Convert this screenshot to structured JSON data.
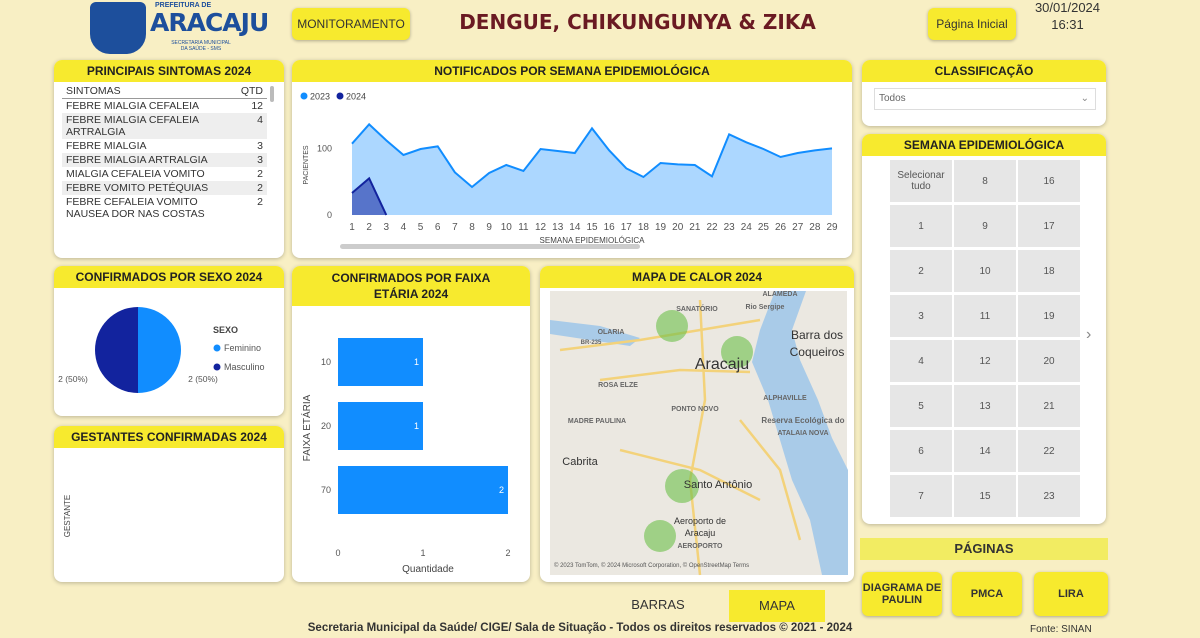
{
  "header": {
    "logo_top": "PREFEITURA DE",
    "logo_name": "ARACAJU",
    "logo_sub": "SECRETARIA MUNICIPAL DA SAÚDE - SMS",
    "monitor_button": "MONITORAMENTO",
    "title": "DENGUE, CHIKUNGUNYA & ZIKA",
    "home_button": "Página Inicial",
    "date": "30/01/2024",
    "time": "16:31"
  },
  "symptoms": {
    "title": "PRINCIPAIS SINTOMAS 2024",
    "headers": [
      "SINTOMAS",
      "QTD"
    ],
    "rows": [
      [
        "FEBRE MIALGIA CEFALEIA",
        "12"
      ],
      [
        "FEBRE MIALGIA CEFALEIA ARTRALGIA",
        "4"
      ],
      [
        "FEBRE MIALGIA",
        "3"
      ],
      [
        "FEBRE MIALGIA ARTRALGIA",
        "3"
      ],
      [
        "MIALGIA CEFALEIA VOMITO",
        "2"
      ],
      [
        "FEBRE VOMITO PETÉQUIAS",
        "2"
      ],
      [
        "FEBRE CEFALEIA VOMITO NAUSEA DOR NAS COSTAS",
        "2"
      ]
    ]
  },
  "chart_data": [
    {
      "type": "line",
      "title": "NOTIFICADOS POR SEMANA EPIDEMIOLÓGICA",
      "x_label": "SEMANA EPIDEMIOLÓGICA",
      "y_label": "PACIENTES",
      "area": true,
      "x": [
        1,
        2,
        3,
        4,
        5,
        6,
        7,
        8,
        9,
        10,
        11,
        12,
        13,
        14,
        15,
        16,
        17,
        18,
        19,
        20,
        21,
        22,
        23,
        24,
        25,
        26,
        27,
        28,
        29
      ],
      "xlim": [
        1,
        29
      ],
      "xticks": [
        1,
        2,
        3,
        4,
        5,
        6,
        7,
        8,
        9,
        10,
        11,
        12,
        13,
        14,
        15,
        16,
        17,
        18,
        19,
        20,
        21,
        22,
        23,
        24,
        25,
        26,
        27,
        28,
        29
      ],
      "ylim": [
        0,
        180
      ],
      "yticks": [
        0,
        100
      ],
      "grid": false,
      "series": [
        {
          "name": "2023",
          "color": "#118dff",
          "values": [
            107,
            136,
            112,
            90,
            99,
            103,
            64,
            42,
            63,
            75,
            66,
            99,
            96,
            93,
            130,
            97,
            70,
            57,
            78,
            76,
            75,
            58,
            121,
            109,
            99,
            87,
            93,
            97,
            100
          ]
        },
        {
          "name": "2024",
          "color": "#12239e",
          "values": [
            33,
            55,
            0,
            null,
            null,
            null,
            null,
            null,
            null,
            null,
            null,
            null,
            null,
            null,
            null,
            null,
            null,
            null,
            null,
            null,
            null,
            null,
            null,
            null,
            null,
            null,
            null,
            null,
            null
          ]
        }
      ]
    },
    {
      "type": "pie",
      "title": "CONFIRMADOS POR SEXO 2024",
      "legend_title": "SEXO",
      "categories": [
        "Feminino",
        "Masculino"
      ],
      "values": [
        2,
        2
      ],
      "value_labels": [
        "2 (50%)",
        "2 (50%)"
      ],
      "colors": [
        "#118dff",
        "#12239e"
      ]
    },
    {
      "type": "bar",
      "orientation": "horizontal",
      "title": "CONFIRMADOS POR FAIXA ETÁRIA 2024",
      "x_label": "Quantidade",
      "y_label": "FAIXA ETÁRIA",
      "categories": [
        "10",
        "20",
        "70"
      ],
      "values": [
        1,
        1,
        2
      ],
      "color": "#118dff",
      "xlim": [
        0,
        2
      ],
      "xticks": [
        0,
        1,
        2
      ],
      "grid": false
    }
  ],
  "pregnant": {
    "title": "GESTANTES CONFIRMADAS 2024",
    "y_label": "GESTANTE"
  },
  "map": {
    "title": "MAPA DE CALOR 2024",
    "labels": [
      "ALAMEDA",
      "SANATÓRIO",
      "Rio Sergipe",
      "OLARIA",
      "BR-235",
      "Barra dos",
      "Coqueiros",
      "Aracaju",
      "ROSA ELZE",
      "ALPHAVILLE",
      "PONTO NOVO",
      "MADRE PAULINA",
      "Reserva Ecológica do",
      "ATALAIA NOVA",
      "Cabrita",
      "Santo Antônio",
      "Aeroporto de",
      "Aracaju",
      "AEROPORTO"
    ],
    "attribution": "© 2023 TomTom, © 2024 Microsoft Corporation, © OpenStreetMap  Terms"
  },
  "classification": {
    "title": "CLASSIFICAÇÃO",
    "selected": "Todos"
  },
  "week_slicer": {
    "title": "SEMANA EPIDEMIOLÓGICA",
    "items": [
      "Selecionar tudo",
      "1",
      "2",
      "3",
      "4",
      "5",
      "6",
      "7",
      "8",
      "9",
      "10",
      "11",
      "12",
      "13",
      "14",
      "15",
      "16",
      "17",
      "18",
      "19",
      "20",
      "21",
      "22",
      "23"
    ]
  },
  "pages": {
    "title": "PÁGINAS",
    "buttons": [
      "DIAGRAMA DE PAULIN",
      "PMCA",
      "LIRA"
    ]
  },
  "tabs": [
    "BARRAS",
    "MAPA"
  ],
  "footer": {
    "text": "Secretaria Municipal da Saúde/ CIGE/ Sala de Situação - Todos os direitos reservados © 2021 - 2024",
    "source": "Fonte: SINAN"
  }
}
